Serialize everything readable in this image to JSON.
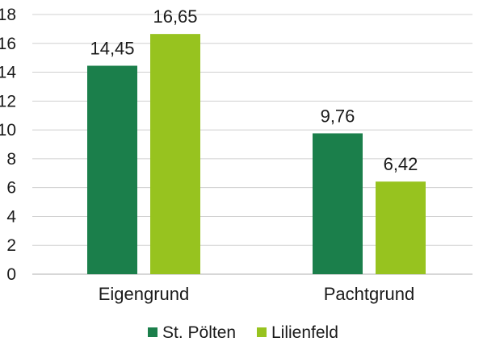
{
  "chart_data": {
    "type": "bar",
    "categories": [
      "Eigengrund",
      "Pachtgrund"
    ],
    "series": [
      {
        "name": "St. Pölten",
        "values": [
          14.45,
          9.76
        ],
        "labels": [
          "14,45",
          "9,76"
        ],
        "color": "#1b7f4b"
      },
      {
        "name": "Lilienfeld",
        "values": [
          16.65,
          6.42
        ],
        "labels": [
          "16,65",
          "6,42"
        ],
        "color": "#97c31f"
      }
    ],
    "yticks": [
      0,
      2,
      4,
      6,
      8,
      10,
      12,
      14,
      16,
      18
    ],
    "ylim": [
      0,
      18
    ],
    "grid": true,
    "legend": "bottom",
    "title": "",
    "xlabel": "",
    "ylabel": ""
  }
}
